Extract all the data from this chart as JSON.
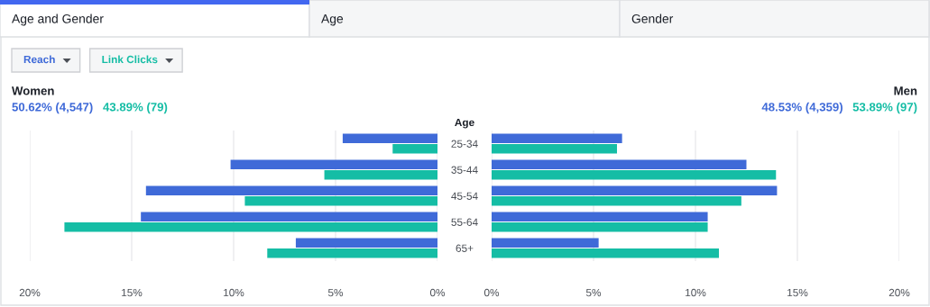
{
  "chart_data": [
    {
      "type": "bar",
      "orientation": "horizontal",
      "title": "Women",
      "categories": [
        "25-34",
        "35-44",
        "45-54",
        "55-64",
        "65+"
      ],
      "series": [
        {
          "name": "Reach",
          "color": "#3f6ad8",
          "values": [
            4.65,
            10.15,
            14.3,
            14.55,
            6.95
          ]
        },
        {
          "name": "Link Clicks",
          "color": "#15bda5",
          "values": [
            2.2,
            5.55,
            9.45,
            18.3,
            8.35
          ]
        }
      ],
      "xlim": [
        20,
        0
      ],
      "xticks": [
        {
          "value": 20,
          "label": "20%"
        },
        {
          "value": 15,
          "label": "15%"
        },
        {
          "value": 10,
          "label": "10%"
        },
        {
          "value": 5,
          "label": "5%"
        },
        {
          "value": 0,
          "label": "0%"
        }
      ],
      "annotations": [
        "Age and Gender",
        "Age",
        "Gender",
        "50.62% (4,547)",
        "43.89% (79)"
      ],
      "grid": "x",
      "legend": "top left",
      "ylabel": "Age"
    },
    {
      "type": "bar",
      "orientation": "horizontal",
      "title": "Men",
      "tick_labels": "x",
      "categories": [
        null,
        null,
        null,
        null,
        null
      ],
      "series": [
        {
          "color": "#3f6ad8",
          "values": [
            6.4,
            12.5,
            14.0,
            10.6,
            5.25
          ]
        },
        {
          "color": "#15bda5",
          "values": [
            6.15,
            13.95,
            12.25,
            10.6,
            11.15
          ]
        }
      ],
      "xlim": [
        0,
        20
      ],
      "xticks": [
        {
          "value": 0,
          "label": "0%"
        },
        {
          "value": 5,
          "label": "5%"
        },
        {
          "value": 10,
          "label": "10%"
        },
        {
          "value": 15,
          "label": "15%"
        },
        {
          "value": 20,
          "label": "20%"
        }
      ],
      "annotations": [
        "48.53% (4,359)",
        "53.89% (97)"
      ],
      "grid": "x"
    }
  ]
}
